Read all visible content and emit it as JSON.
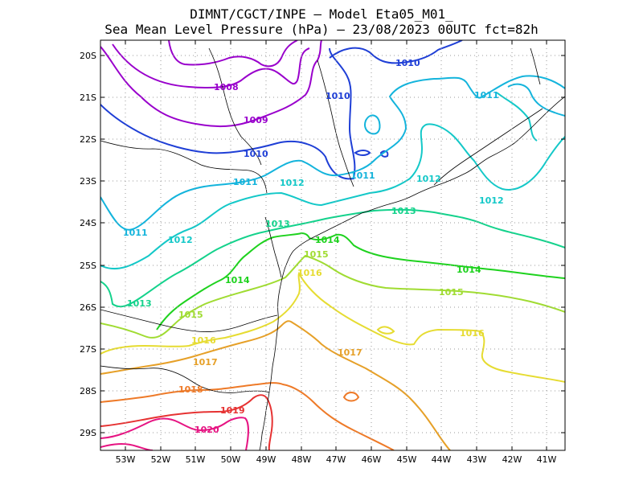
{
  "title_line1": "DIMNT/CGCT/INPE —  Model Eta05_M01_",
  "title_line2": "Sea Mean Level Pressure (hPa) — 23/08/2023 00UTC fct=82h",
  "lat_labels": [
    "20S",
    "21S",
    "22S",
    "23S",
    "24S",
    "25S",
    "26S",
    "27S",
    "28S",
    "29S"
  ],
  "lon_labels": [
    "53W",
    "52W",
    "51W",
    "50W",
    "49W",
    "48W",
    "47W",
    "46W",
    "45W",
    "44W",
    "43W",
    "42W",
    "41W"
  ],
  "isobars": [
    {
      "value": "1008",
      "color": "#9900cc"
    },
    {
      "value": "1009",
      "color": "#9900cc"
    },
    {
      "value": "1010",
      "color": "#1f3fd6"
    },
    {
      "value": "1011",
      "color": "#14b4dc"
    },
    {
      "value": "1012",
      "color": "#14c8c8"
    },
    {
      "value": "1013",
      "color": "#14d28c"
    },
    {
      "value": "1014",
      "color": "#1ed21e"
    },
    {
      "value": "1015",
      "color": "#a0dc32"
    },
    {
      "value": "1016",
      "color": "#e6dc32"
    },
    {
      "value": "1017",
      "color": "#e6a028"
    },
    {
      "value": "1018",
      "color": "#ee7a28"
    },
    {
      "value": "1019",
      "color": "#e63232"
    },
    {
      "value": "1020",
      "color": "#e61482"
    }
  ],
  "contour_labels": [
    {
      "text": "1008",
      "color": "#9900cc"
    },
    {
      "text": "1009",
      "color": "#9900cc"
    },
    {
      "text": "1010",
      "color": "#1f3fd6"
    },
    {
      "text": "1010",
      "color": "#1f3fd6"
    },
    {
      "text": "1010",
      "color": "#1f3fd6"
    },
    {
      "text": "1011",
      "color": "#14b4dc"
    },
    {
      "text": "1011",
      "color": "#14b4dc"
    },
    {
      "text": "1011",
      "color": "#14b4dc"
    },
    {
      "text": "1011",
      "color": "#14b4dc"
    },
    {
      "text": "1012",
      "color": "#14c8c8"
    },
    {
      "text": "1012",
      "color": "#14c8c8"
    },
    {
      "text": "1012",
      "color": "#14c8c8"
    },
    {
      "text": "1012",
      "color": "#14c8c8"
    },
    {
      "text": "1013",
      "color": "#14d28c"
    },
    {
      "text": "1013",
      "color": "#14d28c"
    },
    {
      "text": "1013",
      "color": "#14d28c"
    },
    {
      "text": "1014",
      "color": "#1ed21e"
    },
    {
      "text": "1014",
      "color": "#1ed21e"
    },
    {
      "text": "1014",
      "color": "#1ed21e"
    },
    {
      "text": "1015",
      "color": "#a0dc32"
    },
    {
      "text": "1015",
      "color": "#a0dc32"
    },
    {
      "text": "1015",
      "color": "#a0dc32"
    },
    {
      "text": "1016",
      "color": "#e6dc32"
    },
    {
      "text": "1016",
      "color": "#e6dc32"
    },
    {
      "text": "1016",
      "color": "#e6dc32"
    },
    {
      "text": "1017",
      "color": "#e6a028"
    },
    {
      "text": "1017",
      "color": "#e6a028"
    },
    {
      "text": "1018",
      "color": "#ee7a28"
    },
    {
      "text": "1019",
      "color": "#e63232"
    },
    {
      "text": "1020",
      "color": "#e61482"
    }
  ]
}
